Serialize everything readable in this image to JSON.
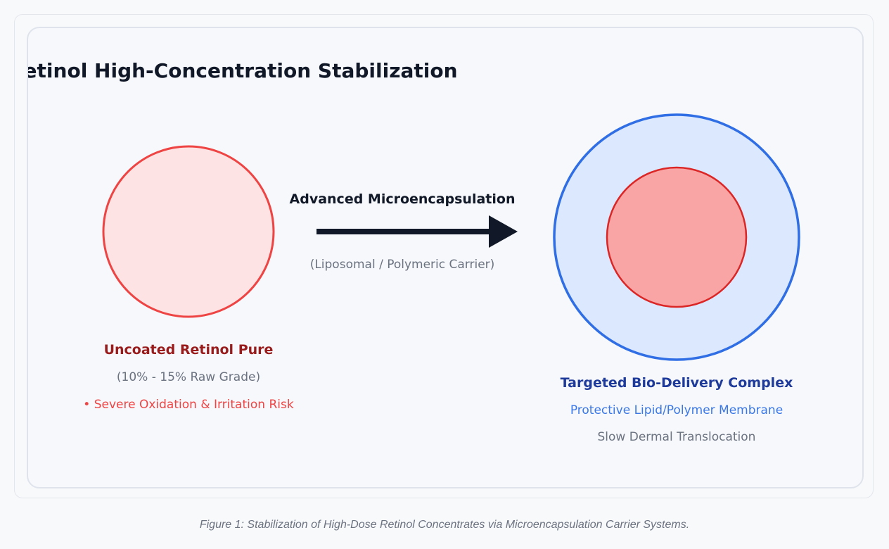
{
  "diagram": {
    "title": "Retinol High-Concentration Stabilization",
    "left": {
      "label": "Uncoated Retinol Pure",
      "grade": "(10% - 15% Raw Grade)",
      "risk": "• Severe Oxidation & Irritation Risk"
    },
    "arrow": {
      "label": "Advanced Microencapsulation",
      "sublabel": "(Liposomal / Polymeric Carrier)"
    },
    "right": {
      "label": "Targeted Bio-Delivery Complex",
      "membrane": "Protective Lipid/Polymer Membrane",
      "release": "Slow Dermal Translocation"
    },
    "colors": {
      "raw_fill": "#fde3e3",
      "raw_stroke": "#ef4444",
      "shell_fill": "#dbe8fd",
      "shell_stroke": "#2f6ee5",
      "core_fill": "#f9a5a5",
      "core_stroke": "#dc2626",
      "arrow": "#111827",
      "title": "#111827",
      "raw_label": "#991b1b",
      "right_label": "#1e3a9a",
      "membrane_text": "#3b78e7",
      "muted": "#6b7280",
      "risk": "#ef4444"
    }
  },
  "caption": "Figure 1: Stabilization of High-Dose Retinol Concentrates via Microencapsulation Carrier Systems."
}
